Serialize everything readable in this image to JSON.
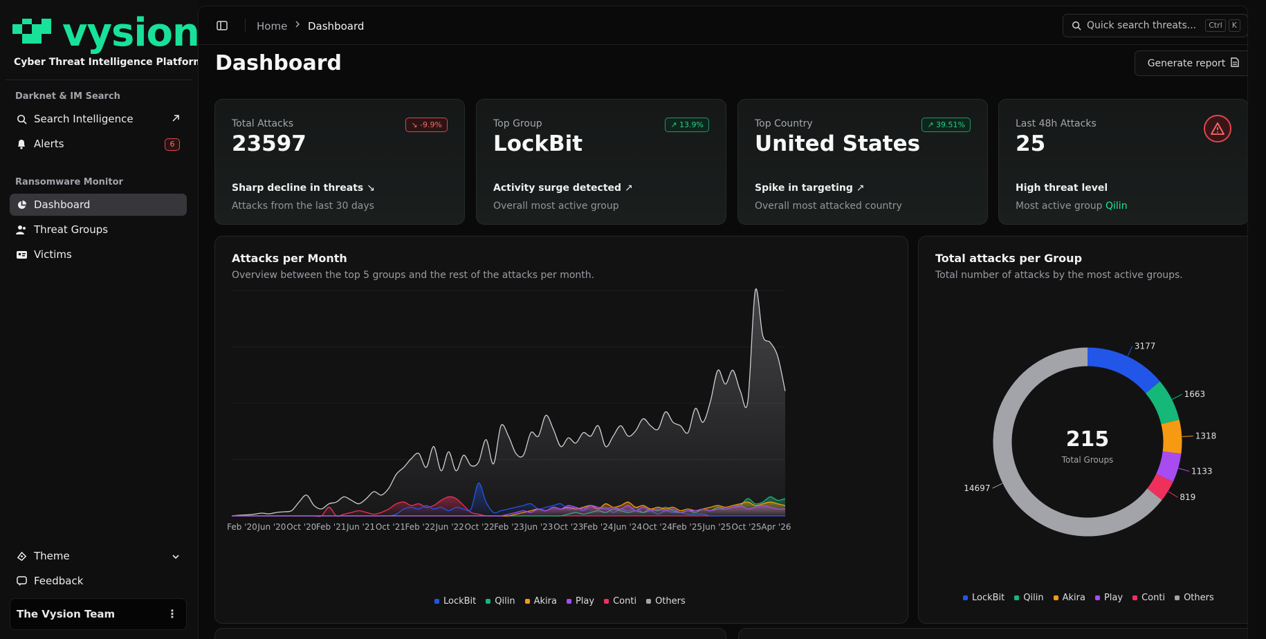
{
  "brand": {
    "name": "vysion",
    "tagline": "Cyber Threat Intelligence Platform"
  },
  "sidebar": {
    "section1": "Darknet & IM Search",
    "section2": "Ransomware Monitor",
    "items": [
      {
        "label": "Search Intelligence"
      },
      {
        "label": "Alerts",
        "badge": "6"
      },
      {
        "label": "Dashboard"
      },
      {
        "label": "Threat Groups"
      },
      {
        "label": "Victims"
      }
    ],
    "theme": "Theme",
    "feedback": "Feedback",
    "team": "The Vysion Team"
  },
  "topbar": {
    "breadcrumb_home": "Home",
    "breadcrumb_current": "Dashboard",
    "search_placeholder": "Quick search threats...",
    "kbd1": "Ctrl",
    "kbd2": "K"
  },
  "page": {
    "title": "Dashboard",
    "generate_report": "Generate report"
  },
  "cards": [
    {
      "label": "Total Attacks",
      "value": "23597",
      "pill": "-9.9%",
      "line1": "Sharp decline in threats",
      "line2": "Attacks from the last 30 days"
    },
    {
      "label": "Top Group",
      "value": "LockBit",
      "pill": "13.9%",
      "line1": "Activity surge detected",
      "line2": "Overall most active group"
    },
    {
      "label": "Top Country",
      "value": "United States",
      "pill": "39.51%",
      "line1": "Spike in targeting",
      "line2": "Overall most attacked country"
    },
    {
      "label": "Last 48h Attacks",
      "value": "25",
      "line1": "High threat level",
      "line2_prefix": "Most active group ",
      "line2_highlight": "Qilin"
    }
  ],
  "colors": {
    "accent": "#18e29a",
    "lockbit": "#2156e8",
    "qilin": "#15b878",
    "akira": "#f59a12",
    "play": "#a64cf0",
    "conti": "#f0305c",
    "others": "#a3a3aa"
  },
  "attacks_chart": {
    "title": "Attacks per Month",
    "subtitle": "Overview between the top 5 groups and the rest of the attacks per month."
  },
  "groups_chart": {
    "title": "Total attacks per Group",
    "subtitle": "Total number of attacks by the most active groups.",
    "center_value": "215",
    "center_label": "Total Groups"
  },
  "chart_data": [
    {
      "type": "area",
      "title": "Attacks per Month",
      "x_ticks": [
        "Feb '20",
        "Jun '20",
        "Oct '20",
        "Feb '21",
        "Jun '21",
        "Oct '21",
        "Feb '22",
        "Jun '22",
        "Oct '22",
        "Feb '23",
        "Jun '23",
        "Oct '23",
        "Feb '24",
        "Jun '24",
        "Oct '24",
        "Feb '25",
        "Jun '25",
        "Oct '25",
        "Apr '26"
      ],
      "series": [
        {
          "name": "LockBit",
          "values": [
            0,
            0,
            0,
            0,
            0,
            0,
            0,
            0,
            0,
            0,
            0,
            0,
            0,
            0,
            0,
            0,
            0,
            0,
            0,
            0,
            0,
            0,
            5,
            20,
            25,
            20,
            30,
            20,
            25,
            15,
            25,
            20,
            20,
            95,
            40,
            10,
            15,
            20,
            25,
            30,
            35,
            20,
            25,
            30,
            35,
            20,
            25,
            15,
            30,
            20,
            25,
            10,
            20,
            15,
            25,
            10,
            15,
            5,
            15,
            10,
            10,
            5,
            5,
            5,
            0,
            0,
            0,
            0,
            0,
            0,
            0,
            0,
            0,
            0,
            0
          ]
        },
        {
          "name": "Qilin",
          "values": [
            0,
            0,
            0,
            0,
            0,
            0,
            0,
            0,
            0,
            0,
            0,
            0,
            0,
            0,
            0,
            0,
            0,
            0,
            0,
            0,
            0,
            0,
            0,
            0,
            0,
            0,
            0,
            0,
            0,
            0,
            0,
            0,
            0,
            0,
            0,
            0,
            0,
            0,
            0,
            0,
            0,
            0,
            0,
            0,
            0,
            5,
            10,
            5,
            10,
            15,
            10,
            20,
            15,
            10,
            15,
            10,
            20,
            15,
            25,
            15,
            10,
            15,
            10,
            20,
            15,
            25,
            20,
            25,
            30,
            50,
            35,
            40,
            55,
            45,
            50
          ]
        },
        {
          "name": "Akira",
          "values": [
            0,
            0,
            0,
            0,
            0,
            0,
            0,
            0,
            0,
            0,
            0,
            0,
            0,
            0,
            0,
            0,
            0,
            0,
            0,
            0,
            0,
            0,
            0,
            0,
            0,
            0,
            0,
            0,
            0,
            0,
            0,
            0,
            0,
            0,
            0,
            0,
            0,
            0,
            5,
            10,
            15,
            20,
            15,
            25,
            20,
            25,
            20,
            25,
            30,
            20,
            35,
            25,
            30,
            40,
            25,
            30,
            20,
            25,
            20,
            25,
            15,
            20,
            15,
            20,
            25,
            30,
            25,
            30,
            35,
            40,
            30,
            35,
            40,
            35,
            30
          ]
        },
        {
          "name": "Play",
          "values": [
            0,
            0,
            0,
            0,
            0,
            0,
            0,
            0,
            0,
            0,
            0,
            0,
            0,
            0,
            0,
            0,
            0,
            0,
            0,
            0,
            0,
            0,
            0,
            0,
            0,
            0,
            0,
            0,
            0,
            0,
            0,
            0,
            0,
            0,
            0,
            0,
            0,
            5,
            10,
            15,
            10,
            20,
            15,
            25,
            20,
            30,
            25,
            20,
            30,
            25,
            20,
            25,
            20,
            30,
            15,
            25,
            15,
            20,
            15,
            20,
            10,
            15,
            15,
            20,
            15,
            20,
            20,
            25,
            30,
            20,
            25,
            30,
            25,
            20,
            20
          ]
        },
        {
          "name": "Conti",
          "values": [
            0,
            0,
            0,
            0,
            0,
            0,
            0,
            0,
            0,
            0,
            0,
            0,
            0,
            25,
            0,
            5,
            10,
            15,
            10,
            5,
            10,
            20,
            35,
            40,
            30,
            35,
            25,
            30,
            45,
            55,
            50,
            30,
            10,
            5,
            0,
            0,
            0,
            0,
            0,
            0,
            0,
            0,
            0,
            0,
            0,
            0,
            0,
            0,
            0,
            0,
            0,
            0,
            0,
            0,
            0,
            0,
            0,
            0,
            0,
            0,
            0,
            0,
            0,
            0,
            0,
            0,
            0,
            0,
            0,
            0,
            0,
            0,
            0,
            0,
            0
          ]
        },
        {
          "name": "Others",
          "values": [
            0,
            2,
            3,
            5,
            8,
            6,
            10,
            12,
            15,
            40,
            60,
            30,
            20,
            35,
            40,
            55,
            45,
            35,
            50,
            70,
            60,
            80,
            120,
            140,
            165,
            180,
            140,
            200,
            130,
            185,
            130,
            175,
            145,
            155,
            220,
            150,
            260,
            230,
            180,
            175,
            240,
            230,
            290,
            250,
            200,
            225,
            210,
            240,
            230,
            260,
            200,
            230,
            260,
            230,
            245,
            280,
            260,
            250,
            300,
            270,
            260,
            240,
            310,
            270,
            330,
            420,
            380,
            420,
            360,
            330,
            650,
            520,
            500,
            460,
            360
          ]
        }
      ],
      "ylim": [
        0,
        650
      ]
    },
    {
      "type": "pie",
      "title": "Total attacks per Group",
      "categories": [
        "LockBit",
        "Qilin",
        "Akira",
        "Play",
        "Conti",
        "Others"
      ],
      "values": [
        3177,
        1663,
        1318,
        1133,
        819,
        14697
      ]
    }
  ]
}
